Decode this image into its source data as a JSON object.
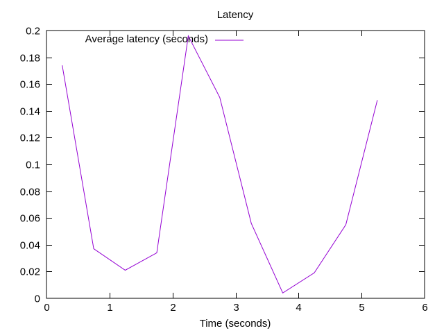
{
  "chart_data": {
    "type": "line",
    "title": "Latency",
    "xlabel": "Time (seconds)",
    "ylabel": "",
    "xlim": [
      0,
      6
    ],
    "ylim": [
      0,
      0.2
    ],
    "grid": false,
    "legend_position": "top-left (inside)",
    "x_ticks": [
      "0",
      "1",
      "2",
      "3",
      "4",
      "5",
      "6"
    ],
    "y_ticks": [
      "0",
      "0.02",
      "0.04",
      "0.06",
      "0.08",
      "0.1",
      "0.12",
      "0.14",
      "0.16",
      "0.18",
      "0.2"
    ],
    "x": [
      0.25,
      0.75,
      1.25,
      1.75,
      2.25,
      2.75,
      3.25,
      3.75,
      4.25,
      4.75,
      5.25
    ],
    "series": [
      {
        "name": "Average latency (seconds)",
        "color": "#9400d3",
        "values": [
          0.174,
          0.037,
          0.021,
          0.034,
          0.196,
          0.15,
          0.056,
          0.004,
          0.019,
          0.055,
          0.148
        ]
      }
    ]
  }
}
